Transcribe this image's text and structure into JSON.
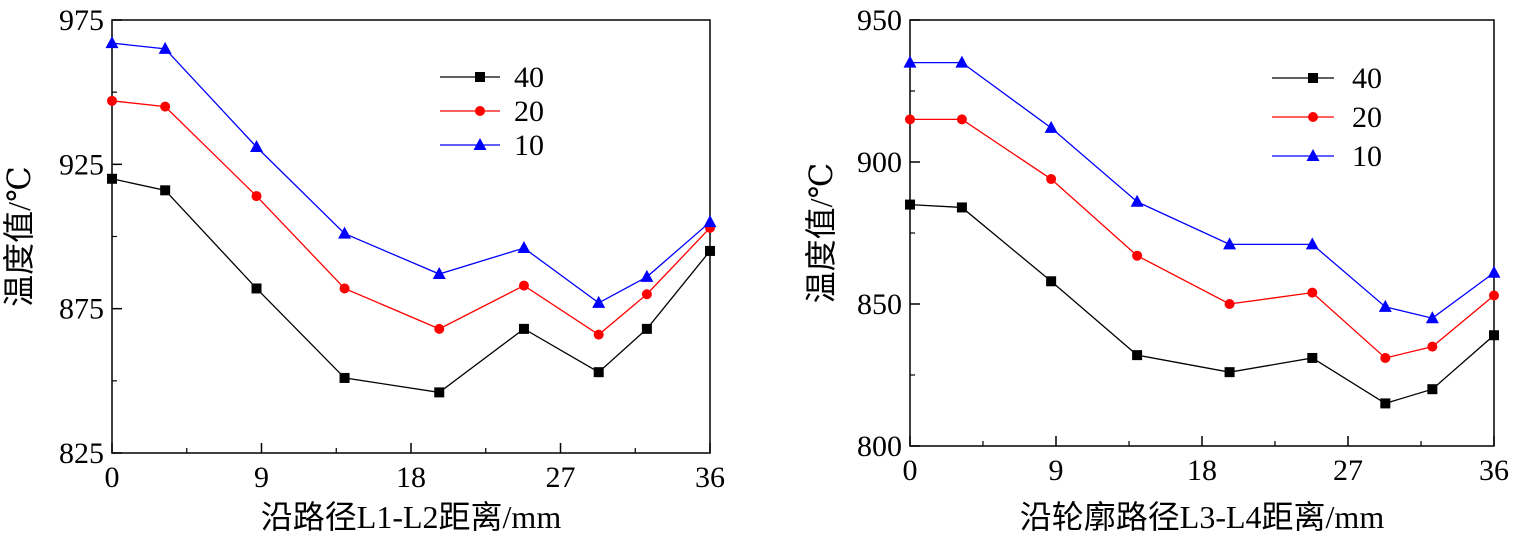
{
  "chart_data": [
    {
      "type": "line",
      "xlabel": "沿路径L1-L2距离/mm",
      "ylabel": "温度值/℃",
      "xlim": [
        0,
        36
      ],
      "ylim": [
        825,
        975
      ],
      "xticks": [
        "0",
        "9",
        "18",
        "27",
        "36"
      ],
      "yticks": [
        "825",
        "875",
        "925",
        "975"
      ],
      "legend_position": "top-right",
      "series": [
        {
          "name": "40",
          "color": "#000000",
          "marker": "square",
          "x": [
            0,
            3.2,
            8.7,
            14,
            19.7,
            24.8,
            29.3,
            32.2,
            36
          ],
          "y": [
            920,
            916,
            882,
            851,
            846,
            868,
            853,
            868,
            895
          ]
        },
        {
          "name": "20",
          "color": "#ff0000",
          "marker": "circle",
          "x": [
            0,
            3.2,
            8.7,
            14,
            19.7,
            24.8,
            29.3,
            32.2,
            36
          ],
          "y": [
            947,
            945,
            914,
            882,
            868,
            883,
            866,
            880,
            903
          ]
        },
        {
          "name": "10",
          "color": "#0000ff",
          "marker": "triangle",
          "x": [
            0,
            3.2,
            8.7,
            14,
            19.7,
            24.8,
            29.3,
            32.2,
            36
          ],
          "y": [
            967,
            965,
            931,
            901,
            887,
            896,
            877,
            886,
            905
          ]
        }
      ]
    },
    {
      "type": "line",
      "xlabel": "沿轮廓路径L3-L4距离/mm",
      "ylabel": "温度值/℃",
      "xlim": [
        0,
        36
      ],
      "ylim": [
        800,
        950
      ],
      "xticks": [
        "0",
        "9",
        "18",
        "27",
        "36"
      ],
      "yticks": [
        "800",
        "850",
        "900",
        "950"
      ],
      "legend_position": "top-right",
      "series": [
        {
          "name": "40",
          "color": "#000000",
          "marker": "square",
          "x": [
            0,
            3.2,
            8.7,
            14,
            19.7,
            24.8,
            29.3,
            32.2,
            36
          ],
          "y": [
            885,
            884,
            858,
            832,
            826,
            831,
            815,
            820,
            839
          ]
        },
        {
          "name": "20",
          "color": "#ff0000",
          "marker": "circle",
          "x": [
            0,
            3.2,
            8.7,
            14,
            19.7,
            24.8,
            29.3,
            32.2,
            36
          ],
          "y": [
            915,
            915,
            894,
            867,
            850,
            854,
            831,
            835,
            853
          ]
        },
        {
          "name": "10",
          "color": "#0000ff",
          "marker": "triangle",
          "x": [
            0,
            3.2,
            8.7,
            14,
            19.7,
            24.8,
            29.3,
            32.2,
            36
          ],
          "y": [
            935,
            935,
            912,
            886,
            871,
            871,
            849,
            845,
            861
          ]
        }
      ]
    }
  ]
}
